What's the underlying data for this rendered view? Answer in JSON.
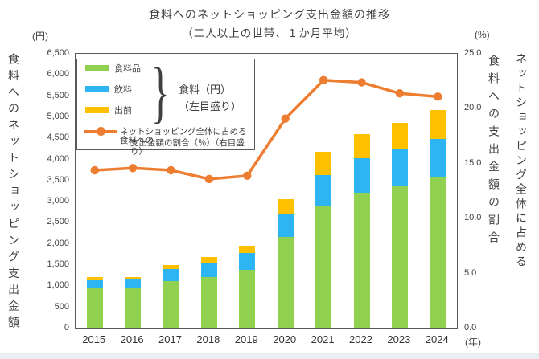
{
  "title": {
    "line1": "食料へのネットショッピング支出金額の推移",
    "line2": "（二人以上の世帯、１か月平均）"
  },
  "axis_units": {
    "left": "(円)",
    "right": "(%)",
    "x": "(年)"
  },
  "axis_titles": {
    "left": "食料へのネットショッピング支出金額",
    "right_inner": "食料への支出金額の割合",
    "right_outer": "ネットショッピング全体に占める"
  },
  "legend": {
    "bars": [
      {
        "label": "食料品",
        "color": "#92d050"
      },
      {
        "label": "飲料",
        "color": "#2cb5f2"
      },
      {
        "label": "出前",
        "color": "#ffc000"
      }
    ],
    "bracket_label_line1": "食料（円）",
    "bracket_label_line2": "（左目盛り）",
    "line_label_line1": "ネットショッピング全体に占める食料への",
    "line_label_line2": "支出金額の割合（％）（右目盛り）",
    "line_color": "#ed7d31"
  },
  "chart_data": {
    "type": "bar",
    "subtype": "stacked-bar-with-line",
    "title": "食料へのネットショッピング支出金額の推移（二人以上の世帯、１か月平均）",
    "categories": [
      "2015",
      "2016",
      "2017",
      "2018",
      "2019",
      "2020",
      "2021",
      "2022",
      "2023",
      "2024"
    ],
    "series": [
      {
        "name": "食料品",
        "axis": "left",
        "color": "#92d050",
        "values": [
          955,
          975,
          1125,
          1220,
          1395,
          2160,
          2905,
          3210,
          3385,
          3595
        ]
      },
      {
        "name": "飲料",
        "axis": "left",
        "color": "#2cb5f2",
        "values": [
          190,
          190,
          290,
          325,
          385,
          555,
          730,
          820,
          860,
          900
        ]
      },
      {
        "name": "出前",
        "axis": "left",
        "color": "#ffc000",
        "values": [
          75,
          60,
          95,
          155,
          170,
          345,
          555,
          575,
          630,
          670
        ]
      }
    ],
    "line_series": {
      "name": "ネットショッピング全体に占める食料への支出金額の割合（％）",
      "axis": "right",
      "color": "#ed7d31",
      "values": [
        14.4,
        14.6,
        14.4,
        13.6,
        13.9,
        19.1,
        22.6,
        22.4,
        21.4,
        21.1
      ]
    },
    "left_axis": {
      "unit": "円",
      "min": 0,
      "max": 6500,
      "step": 500,
      "tick_labels": [
        "0",
        "500",
        "1,000",
        "1,500",
        "2,000",
        "2,500",
        "3,000",
        "3,500",
        "4,000",
        "4,500",
        "5,000",
        "5,500",
        "6,000",
        "6,500"
      ]
    },
    "right_axis": {
      "unit": "%",
      "min": 0,
      "max": 25,
      "step": 5,
      "tick_labels": [
        "0.0",
        "5.0",
        "10.0",
        "15.0",
        "20.0",
        "25.0"
      ]
    },
    "x_axis_unit": "年",
    "grid": false,
    "legend_position": "inside-top-left"
  }
}
